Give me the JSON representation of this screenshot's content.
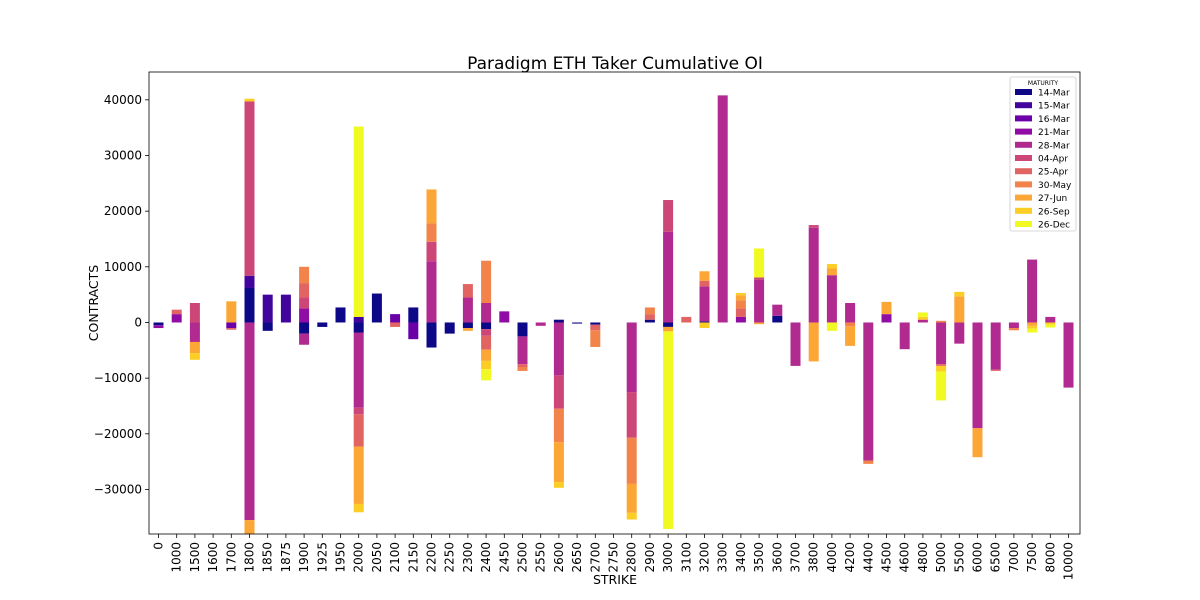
{
  "chart_data": {
    "type": "bar",
    "stacked": true,
    "title": "Paradigm ETH Taker Cumulative OI",
    "xlabel": "STRIKE",
    "ylabel": "CONTRACTS",
    "ylim": [
      -38000,
      45000
    ],
    "yticks": [
      -30000,
      -20000,
      -10000,
      0,
      10000,
      20000,
      30000,
      40000
    ],
    "grid": false,
    "legend": {
      "title": "MATURITY",
      "position": "top-right"
    },
    "categories": [
      "0",
      "1000",
      "1500",
      "1600",
      "1700",
      "1800",
      "1850",
      "1875",
      "1900",
      "1925",
      "1950",
      "2000",
      "2050",
      "2100",
      "2150",
      "2200",
      "2250",
      "2300",
      "2400",
      "2450",
      "2500",
      "2550",
      "2600",
      "2650",
      "2700",
      "2750",
      "2800",
      "2900",
      "3000",
      "3100",
      "3200",
      "3300",
      "3400",
      "3500",
      "3600",
      "3700",
      "3800",
      "4000",
      "4200",
      "4400",
      "4500",
      "4600",
      "4800",
      "5000",
      "5500",
      "6000",
      "6500",
      "7000",
      "7500",
      "8000",
      "10000"
    ],
    "series": [
      {
        "name": "14-Mar",
        "color": "#0d0887",
        "values": [
          -500,
          0,
          0,
          0,
          0,
          6200,
          -1500,
          0,
          -2000,
          -800,
          2700,
          -1800,
          5200,
          0,
          2700,
          -4500,
          -2000,
          -1000,
          -1200,
          0,
          -2500,
          0,
          500,
          -200,
          -400,
          0,
          0,
          500,
          -800,
          0,
          200,
          0,
          0,
          0,
          1200,
          0,
          0,
          0,
          0,
          0,
          0,
          0,
          0,
          0,
          0,
          0,
          0,
          0,
          0,
          0,
          0
        ]
      },
      {
        "name": "15-Mar",
        "color": "#41049d",
        "values": [
          0,
          0,
          0,
          0,
          0,
          2200,
          5000,
          5000,
          0,
          0,
          0,
          1000,
          0,
          0,
          0,
          0,
          0,
          0,
          0,
          0,
          0,
          0,
          0,
          0,
          0,
          0,
          0,
          0,
          0,
          0,
          0,
          0,
          0,
          0,
          0,
          0,
          0,
          0,
          0,
          0,
          0,
          0,
          0,
          0,
          0,
          0,
          0,
          0,
          0,
          0,
          0
        ]
      },
      {
        "name": "16-Mar",
        "color": "#6a00a8",
        "values": [
          0,
          0,
          0,
          0,
          -1000,
          0,
          0,
          0,
          0,
          0,
          0,
          0,
          0,
          1500,
          -3000,
          0,
          0,
          0,
          0,
          0,
          0,
          0,
          0,
          0,
          0,
          0,
          0,
          0,
          0,
          0,
          0,
          0,
          0,
          0,
          0,
          0,
          0,
          0,
          0,
          0,
          0,
          0,
          0,
          0,
          0,
          0,
          0,
          0,
          0,
          0,
          0
        ]
      },
      {
        "name": "21-Mar",
        "color": "#8f0da4",
        "values": [
          -500,
          1500,
          0,
          0,
          0,
          0,
          0,
          0,
          2500,
          0,
          0,
          0,
          0,
          0,
          0,
          0,
          0,
          0,
          0,
          2000,
          0,
          0,
          0,
          0,
          0,
          0,
          0,
          0,
          0,
          0,
          0,
          0,
          1000,
          0,
          0,
          0,
          0,
          0,
          0,
          0,
          1500,
          0,
          0,
          0,
          0,
          0,
          0,
          0,
          0,
          0,
          0
        ]
      },
      {
        "name": "28-Mar",
        "color": "#b12a90",
        "values": [
          0,
          0,
          -3500,
          0,
          0,
          -35500,
          0,
          0,
          -2000,
          0,
          0,
          -13500,
          0,
          0,
          0,
          11000,
          0,
          4500,
          3500,
          0,
          -5000,
          -600,
          -9500,
          0,
          0,
          0,
          -12500,
          0,
          16300,
          0,
          6300,
          40800,
          0,
          7700,
          2000,
          -7800,
          17000,
          8500,
          3500,
          -24800,
          0,
          -4800,
          500,
          -7500,
          -3800,
          -19000,
          -8500,
          -1000,
          11300,
          1000,
          -11700
        ]
      },
      {
        "name": "04-Apr",
        "color": "#cc4778",
        "values": [
          0,
          0,
          3500,
          0,
          0,
          31300,
          0,
          0,
          2000,
          0,
          0,
          -1200,
          0,
          0,
          0,
          3500,
          0,
          0,
          -1200,
          0,
          0,
          0,
          -6000,
          0,
          0,
          0,
          -8200,
          0,
          5700,
          0,
          0,
          0,
          0,
          400,
          0,
          0,
          500,
          0,
          0,
          0,
          0,
          0,
          0,
          0,
          0,
          0,
          0,
          0,
          0,
          0,
          0
        ]
      },
      {
        "name": "25-Apr",
        "color": "#e16462",
        "values": [
          0,
          800,
          0,
          0,
          -300,
          0,
          0,
          0,
          2500,
          0,
          0,
          -5800,
          0,
          -800,
          0,
          0,
          0,
          2400,
          -2500,
          0,
          -500,
          0,
          0,
          0,
          -1000,
          0,
          0,
          1000,
          0,
          1000,
          1000,
          0,
          1500,
          0,
          0,
          0,
          0,
          0,
          0,
          0,
          0,
          0,
          0,
          -300,
          0,
          0,
          -200,
          0,
          0,
          0,
          0
        ]
      },
      {
        "name": "30-May",
        "color": "#f2844b",
        "values": [
          0,
          0,
          0,
          0,
          0,
          0,
          0,
          0,
          3000,
          0,
          0,
          0,
          0,
          0,
          0,
          3300,
          0,
          0,
          7600,
          0,
          -700,
          0,
          -6000,
          0,
          -3000,
          0,
          -8300,
          1200,
          0,
          0,
          0,
          0,
          1500,
          0,
          0,
          0,
          0,
          0,
          -700,
          -600,
          0,
          0,
          0,
          300,
          0,
          0,
          0,
          -400,
          0,
          0,
          0
        ]
      },
      {
        "name": "27-Jun",
        "color": "#fca636",
        "values": [
          0,
          0,
          -2000,
          0,
          3800,
          -2500,
          0,
          0,
          0,
          0,
          0,
          -10300,
          0,
          0,
          0,
          6100,
          0,
          -500,
          -2000,
          0,
          0,
          0,
          -7200,
          0,
          0,
          0,
          -5200,
          0,
          -800,
          0,
          1700,
          0,
          900,
          -300,
          0,
          0,
          -7000,
          1200,
          -3500,
          0,
          2200,
          0,
          0,
          0,
          4700,
          -5200,
          0,
          0,
          -600,
          0,
          0
        ]
      },
      {
        "name": "26-Sep",
        "color": "#fcce25",
        "values": [
          0,
          0,
          -1200,
          0,
          0,
          500,
          0,
          0,
          0,
          0,
          0,
          -1500,
          0,
          0,
          0,
          0,
          0,
          0,
          -1500,
          0,
          0,
          0,
          -1000,
          0,
          0,
          0,
          -1200,
          0,
          0,
          0,
          -1000,
          0,
          400,
          0,
          0,
          0,
          0,
          800,
          0,
          0,
          0,
          0,
          500,
          -1000,
          800,
          0,
          0,
          0,
          -500,
          -400,
          0
        ]
      },
      {
        "name": "26-Dec",
        "color": "#f0f921",
        "values": [
          0,
          0,
          0,
          0,
          0,
          0,
          0,
          0,
          0,
          0,
          0,
          34200,
          0,
          0,
          0,
          0,
          0,
          0,
          -2000,
          0,
          0,
          0,
          0,
          0,
          0,
          0,
          0,
          0,
          -35500,
          0,
          0,
          0,
          0,
          5200,
          0,
          0,
          0,
          -1500,
          0,
          0,
          0,
          0,
          800,
          -5200,
          0,
          0,
          0,
          0,
          -700,
          -500,
          0
        ]
      }
    ]
  }
}
